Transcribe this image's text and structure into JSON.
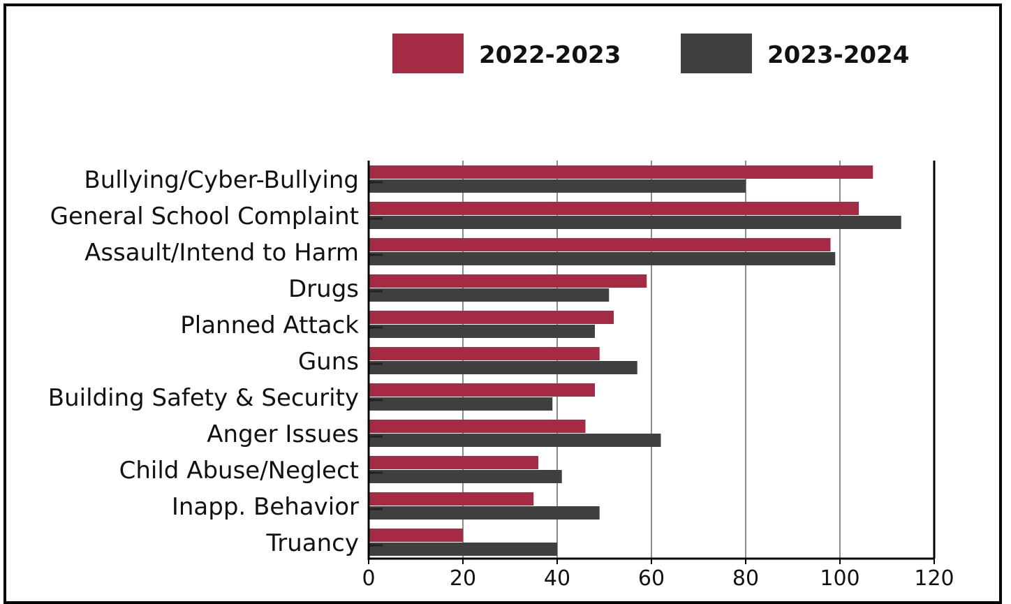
{
  "chart_data": {
    "type": "bar",
    "orientation": "horizontal",
    "categories": [
      "Bullying/Cyber-Bullying",
      "General School Complaint",
      "Assault/Intend to Harm",
      "Drugs",
      "Planned Attack",
      "Guns",
      "Building Safety & Security",
      "Anger Issues",
      "Child Abuse/Neglect",
      "Inapp. Behavior",
      "Truancy"
    ],
    "series": [
      {
        "name": "2022-2023",
        "color": "#a52a44",
        "values": [
          107,
          104,
          98,
          59,
          52,
          49,
          48,
          46,
          36,
          35,
          20
        ]
      },
      {
        "name": "2023-2024",
        "color": "#404040",
        "values": [
          80,
          113,
          99,
          51,
          48,
          57,
          39,
          62,
          41,
          49,
          40
        ]
      }
    ],
    "xlim": [
      0,
      120
    ],
    "xticks": [
      "0",
      "20",
      "40",
      "60",
      "80",
      "100",
      "120"
    ],
    "grid": true,
    "legend": "top"
  }
}
